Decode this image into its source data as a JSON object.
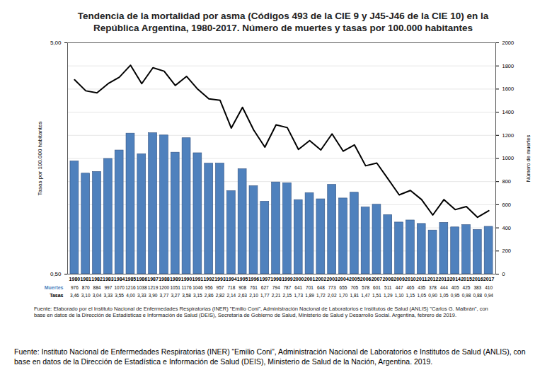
{
  "chart_data": {
    "type": "bar",
    "title": "Tendencia de la mortalidad por asma (Códigos 493 de la CIE 9 y J45-J46 de la CIE 10) en la República Argentina, 1980-2017. Número de muertes y tasas por 100.000 habitantes",
    "categories": [
      "1980",
      "1981",
      "1982",
      "1983",
      "1984",
      "1985",
      "1986",
      "1987",
      "1988",
      "1989",
      "1990",
      "1991",
      "1992",
      "1993",
      "1994",
      "1995",
      "1996",
      "1997",
      "1998",
      "1999",
      "2000",
      "2001",
      "2002",
      "2003",
      "2004",
      "2005",
      "2006",
      "2007",
      "2008",
      "2009",
      "2010",
      "2011",
      "2012",
      "2013",
      "2014",
      "2015",
      "2016",
      "2017"
    ],
    "series": [
      {
        "name": "Muertes",
        "type": "bar",
        "axis": "y2",
        "color": "#4f81bd",
        "values": [
          976,
          870,
          884,
          997,
          1070,
          1216,
          1038,
          1219,
          1200,
          1051,
          1176,
          1046,
          956,
          957,
          718,
          908,
          761,
          627,
          794,
          787,
          641,
          701,
          648,
          773,
          655,
          705,
          578,
          601,
          511,
          447,
          465,
          435,
          378,
          444,
          405,
          425,
          383,
          410
        ]
      },
      {
        "name": "Tasas",
        "type": "line",
        "axis": "y",
        "color": "#000000",
        "values": [
          3.46,
          3.1,
          3.04,
          3.33,
          3.55,
          4.0,
          3.33,
          3.9,
          3.77,
          3.27,
          3.58,
          3.15,
          2.86,
          2.82,
          2.14,
          2.63,
          2.1,
          1.77,
          2.21,
          2.15,
          1.73,
          1.89,
          1.72,
          2.02,
          1.7,
          1.81,
          1.47,
          1.51,
          1.29,
          1.1,
          1.15,
          1.05,
          0.9,
          1.05,
          0.95,
          0.98,
          0.88,
          0.94
        ],
        "value_labels": [
          "3,46",
          "3,10",
          "3,04",
          "3,33",
          "3,55",
          "4,00",
          "3,33",
          "3,90",
          "3,77",
          "3,27",
          "3,58",
          "3,15",
          "2,86",
          "2,82",
          "2,14",
          "2,63",
          "2,10",
          "1,77",
          "2,21",
          "2,15",
          "1,73",
          "1,89",
          "1,72",
          "2,02",
          "1,70",
          "1,81",
          "1,47",
          "1,51",
          "1,29",
          "1,10",
          "1,15",
          "1,05",
          "0,90",
          "1,05",
          "0,95",
          "0,98",
          "0,88",
          "0,94"
        ]
      }
    ],
    "ylabel": "Tasas por 100.000 habitantes",
    "log": "y",
    "ylim": [
      0.5,
      5
    ],
    "yticks": [
      {
        "value": 0.5,
        "label": "0,50"
      },
      {
        "value": 5,
        "label": "5,00"
      }
    ],
    "y2label": "Número de muertes",
    "y2lim": [
      0,
      2000
    ],
    "y2ticks": [
      0,
      200,
      400,
      600,
      800,
      1000,
      1200,
      1400,
      1600,
      1800,
      2000
    ],
    "grid": true,
    "data_labels": true,
    "source": "Fuente: Elaborado por el Instituto Nacional de Enfermedades Respiratorias (INER) \"Emilio Coni\", Administración Nacional de Laboratorios e Institutos de Salud (ANLIS) \"Carlos G. Malbrán\", con base en datos de la Dirección de Estadísticas e Información de Salud (DEIS), Secretaría de Gobierno de Salud, Ministerio de Salud y Desarrollo Social. Argentina, febrero de 2019.",
    "caption": "Fuente: Instituto Nacional de Enfermedades Respiratorias (INER) “Emilio Coni”, Administración Nacional de Laboratorios e Institutos de Salud (ANLIS), con base en datos de la Dirección de Estadística e Información de Salud (DEIS), Ministerio de Salud de la Nación, Argentina. 2019."
  }
}
